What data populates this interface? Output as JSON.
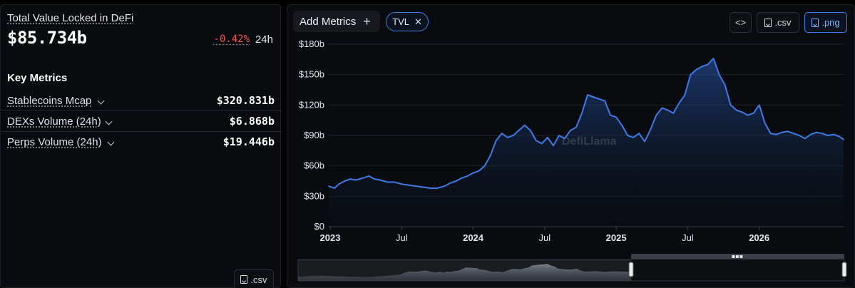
{
  "overview": {
    "tvl_label": "Total Value Locked in DeFi",
    "tvl_value": "$85.734b",
    "tvl_change": "-0.42%",
    "tvl_period": "24h",
    "change_color": "#f0555a"
  },
  "key_metrics": {
    "title": "Key Metrics",
    "items": [
      {
        "label": "Stablecoins Mcap",
        "value": "$320.831b"
      },
      {
        "label": "DEXs Volume (24h)",
        "value": "$6.868b"
      },
      {
        "label": "Perps Volume (24h)",
        "value": "$19.446b"
      }
    ],
    "csv_label": ".csv"
  },
  "toolbar": {
    "add_metrics_label": "Add Metrics",
    "add_icon": "plus-icon",
    "active_metric": "TVL",
    "embed_label": "<>",
    "csv_label": ".csv",
    "png_label": ".png",
    "accent_color": "#3e7fe6"
  },
  "chart_data": {
    "type": "area",
    "title": "",
    "xlabel": "",
    "ylabel": "",
    "ylim": [
      0,
      180
    ],
    "y_unit": "billion USD",
    "y_ticks": [
      0,
      30,
      60,
      90,
      120,
      150,
      180
    ],
    "y_tick_labels": [
      "$0",
      "$30b",
      "$60b",
      "$90b",
      "$120b",
      "$150b",
      "$180b"
    ],
    "x_range": [
      2022.99,
      2026.59
    ],
    "x_ticks": [
      2023.0,
      2023.5,
      2024.0,
      2024.5,
      2025.0,
      2025.5,
      2026.0
    ],
    "x_tick_labels": [
      "2023",
      "Jul",
      "2024",
      "Jul",
      "2025",
      "Jul",
      "2026"
    ],
    "x_tick_bold": [
      true,
      false,
      true,
      false,
      true,
      false,
      true
    ],
    "line_color": "#3d7be6",
    "grid": "horizontal",
    "watermark": "DefiLlama",
    "series": [
      {
        "x": [
          2022.99,
          2023.03,
          2023.06,
          2023.1,
          2023.14,
          2023.18,
          2023.23,
          2023.27,
          2023.31,
          2023.35,
          2023.4,
          2023.45,
          2023.5,
          2023.55,
          2023.6,
          2023.65,
          2023.7,
          2023.75,
          2023.8,
          2023.84,
          2023.88,
          2023.92,
          2023.96,
          2024.0,
          2024.04,
          2024.08,
          2024.12,
          2024.16,
          2024.2,
          2024.24,
          2024.28,
          2024.32,
          2024.36,
          2024.4,
          2024.44,
          2024.48,
          2024.52,
          2024.56,
          2024.6,
          2024.64,
          2024.68,
          2024.72,
          2024.76,
          2024.8,
          2024.84,
          2024.88,
          2024.92,
          2024.96,
          2025.0,
          2025.04,
          2025.08,
          2025.12,
          2025.16,
          2025.2,
          2025.24,
          2025.28,
          2025.32,
          2025.36,
          2025.4,
          2025.44,
          2025.48,
          2025.52,
          2025.56,
          2025.6,
          2025.64,
          2025.68,
          2025.72,
          2025.76,
          2025.8,
          2025.84,
          2025.88,
          2025.92,
          2025.96,
          2026.0,
          2026.04,
          2026.08,
          2026.12,
          2026.16,
          2026.2,
          2026.24,
          2026.28,
          2026.32,
          2026.36,
          2026.4,
          2026.44,
          2026.48,
          2026.52,
          2026.56,
          2026.59
        ],
        "values": [
          40,
          38,
          42,
          45,
          47,
          46,
          48,
          50,
          47,
          46,
          44,
          44,
          42,
          41,
          40,
          39,
          38,
          38,
          40,
          43,
          45,
          48,
          50,
          53,
          55,
          60,
          70,
          85,
          92,
          88,
          90,
          95,
          100,
          95,
          85,
          82,
          88,
          80,
          90,
          87,
          95,
          98,
          112,
          130,
          128,
          126,
          124,
          110,
          108,
          100,
          90,
          88,
          92,
          84,
          96,
          110,
          117,
          115,
          112,
          122,
          130,
          150,
          155,
          158,
          160,
          166,
          150,
          140,
          120,
          115,
          113,
          110,
          112,
          120,
          102,
          92,
          91,
          93,
          94,
          92,
          90,
          87,
          91,
          93,
          92,
          90,
          91,
          89,
          86
        ]
      }
    ]
  }
}
